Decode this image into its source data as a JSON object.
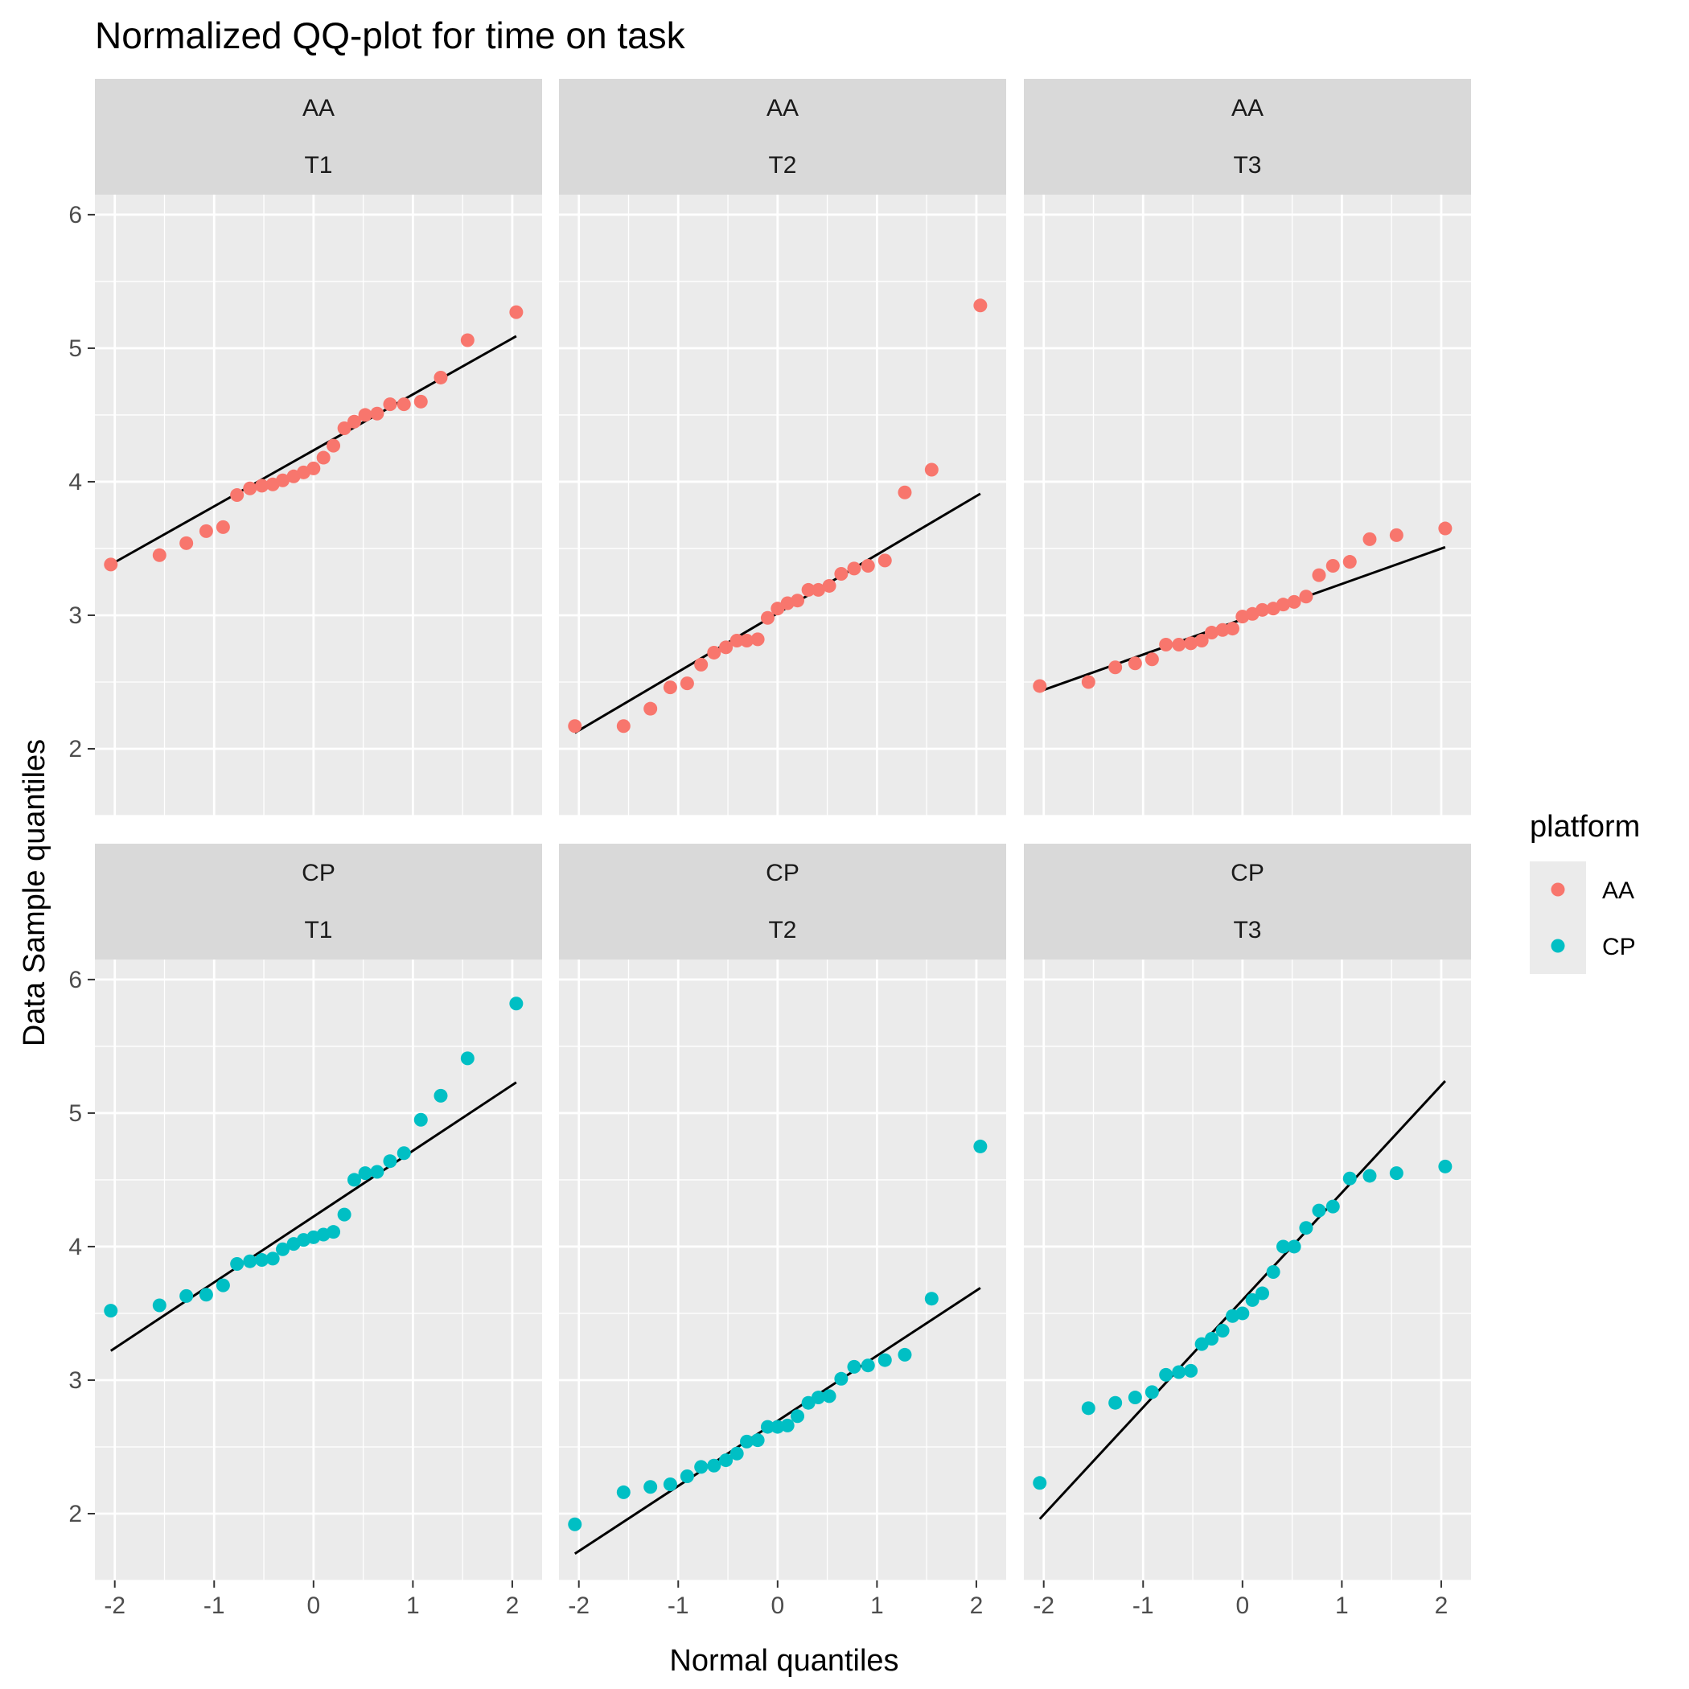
{
  "chart_data": {
    "type": "scatter",
    "title": "Normalized QQ-plot for time on task",
    "xlabel": "Normal quantiles",
    "ylabel": "Data Sample quantiles",
    "xlim": [
      -2.2,
      2.3
    ],
    "ylim": [
      1.5,
      6.15
    ],
    "x_ticks": [
      -2,
      -1,
      0,
      1,
      2
    ],
    "x_tick_labels": [
      "-2",
      "-1",
      "0",
      "1",
      "2"
    ],
    "y_ticks": [
      2,
      3,
      4,
      5,
      6
    ],
    "y_tick_labels": [
      "2",
      "3",
      "4",
      "5",
      "6"
    ],
    "grid": true,
    "legend": {
      "title": "platform",
      "position": "right",
      "entries": [
        {
          "label": "AA",
          "color": "#F8766D"
        },
        {
          "label": "CP",
          "color": "#00BFC4"
        }
      ]
    },
    "line_color": "#000000",
    "panel_background": "#EBEBEB",
    "strip_background": "#D9D9D9",
    "panels": [
      {
        "row": 0,
        "col": 0,
        "platform": "AA",
        "task": "T1",
        "color": "#F8766D",
        "x": [
          -2.04,
          -1.55,
          -1.28,
          -1.08,
          -0.91,
          -0.77,
          -0.64,
          -0.52,
          -0.41,
          -0.31,
          -0.2,
          -0.1,
          0.0,
          0.1,
          0.2,
          0.31,
          0.41,
          0.52,
          0.64,
          0.77,
          0.91,
          1.08,
          1.28,
          1.55,
          2.04
        ],
        "y": [
          3.38,
          3.45,
          3.54,
          3.63,
          3.66,
          3.9,
          3.95,
          3.97,
          3.98,
          4.01,
          4.04,
          4.07,
          4.1,
          4.18,
          4.27,
          4.4,
          4.45,
          4.5,
          4.51,
          4.58,
          4.58,
          4.6,
          4.78,
          5.06,
          5.27
        ],
        "line": [
          [
            -2.04,
            3.38
          ],
          [
            2.04,
            5.09
          ]
        ]
      },
      {
        "row": 0,
        "col": 1,
        "platform": "AA",
        "task": "T2",
        "color": "#F8766D",
        "x": [
          -2.04,
          -1.55,
          -1.28,
          -1.08,
          -0.91,
          -0.77,
          -0.64,
          -0.52,
          -0.41,
          -0.31,
          -0.2,
          -0.1,
          0.0,
          0.1,
          0.2,
          0.31,
          0.41,
          0.52,
          0.64,
          0.77,
          0.91,
          1.08,
          1.28,
          1.55,
          2.04
        ],
        "y": [
          2.17,
          2.17,
          2.3,
          2.46,
          2.49,
          2.63,
          2.72,
          2.76,
          2.81,
          2.81,
          2.82,
          2.98,
          3.05,
          3.09,
          3.11,
          3.19,
          3.19,
          3.22,
          3.31,
          3.35,
          3.37,
          3.41,
          3.92,
          4.09,
          5.32
        ],
        "line": [
          [
            -2.04,
            2.12
          ],
          [
            2.04,
            3.91
          ]
        ]
      },
      {
        "row": 0,
        "col": 2,
        "platform": "AA",
        "task": "T3",
        "color": "#F8766D",
        "x": [
          -2.04,
          -1.55,
          -1.28,
          -1.08,
          -0.91,
          -0.77,
          -0.64,
          -0.52,
          -0.41,
          -0.31,
          -0.2,
          -0.1,
          0.0,
          0.1,
          0.2,
          0.31,
          0.41,
          0.52,
          0.64,
          0.77,
          0.91,
          1.08,
          1.28,
          1.55,
          2.04
        ],
        "y": [
          2.47,
          2.5,
          2.61,
          2.64,
          2.67,
          2.78,
          2.78,
          2.79,
          2.81,
          2.87,
          2.89,
          2.9,
          2.99,
          3.01,
          3.04,
          3.05,
          3.08,
          3.1,
          3.14,
          3.3,
          3.37,
          3.4,
          3.57,
          3.6,
          3.65
        ],
        "line": [
          [
            -2.04,
            2.43
          ],
          [
            2.04,
            3.51
          ]
        ]
      },
      {
        "row": 1,
        "col": 0,
        "platform": "CP",
        "task": "T1",
        "color": "#00BFC4",
        "x": [
          -2.04,
          -1.55,
          -1.28,
          -1.08,
          -0.91,
          -0.77,
          -0.64,
          -0.52,
          -0.41,
          -0.31,
          -0.2,
          -0.1,
          0.0,
          0.1,
          0.2,
          0.31,
          0.41,
          0.52,
          0.64,
          0.77,
          0.91,
          1.08,
          1.28,
          1.55,
          2.04
        ],
        "y": [
          3.52,
          3.56,
          3.63,
          3.64,
          3.71,
          3.87,
          3.89,
          3.9,
          3.91,
          3.98,
          4.02,
          4.05,
          4.07,
          4.09,
          4.11,
          4.24,
          4.5,
          4.55,
          4.56,
          4.64,
          4.7,
          4.95,
          5.13,
          5.41,
          5.82
        ],
        "line": [
          [
            -2.04,
            3.22
          ],
          [
            2.04,
            5.23
          ]
        ]
      },
      {
        "row": 1,
        "col": 1,
        "platform": "CP",
        "task": "T2",
        "color": "#00BFC4",
        "x": [
          -2.04,
          -1.55,
          -1.28,
          -1.08,
          -0.91,
          -0.77,
          -0.64,
          -0.52,
          -0.41,
          -0.31,
          -0.2,
          -0.1,
          0.0,
          0.1,
          0.2,
          0.31,
          0.41,
          0.52,
          0.64,
          0.77,
          0.91,
          1.08,
          1.28,
          1.55,
          2.04
        ],
        "y": [
          1.92,
          2.16,
          2.2,
          2.22,
          2.28,
          2.35,
          2.36,
          2.4,
          2.45,
          2.54,
          2.55,
          2.65,
          2.65,
          2.66,
          2.73,
          2.83,
          2.87,
          2.88,
          3.01,
          3.1,
          3.11,
          3.15,
          3.19,
          3.61,
          4.75
        ],
        "line": [
          [
            -2.04,
            1.7
          ],
          [
            2.04,
            3.69
          ]
        ]
      },
      {
        "row": 1,
        "col": 2,
        "platform": "CP",
        "task": "T3",
        "color": "#00BFC4",
        "x": [
          -2.04,
          -1.55,
          -1.28,
          -1.08,
          -0.91,
          -0.77,
          -0.64,
          -0.52,
          -0.41,
          -0.31,
          -0.2,
          -0.1,
          0.0,
          0.1,
          0.2,
          0.31,
          0.41,
          0.52,
          0.64,
          0.77,
          0.91,
          1.08,
          1.28,
          1.55,
          2.04
        ],
        "y": [
          2.23,
          2.79,
          2.83,
          2.87,
          2.91,
          3.04,
          3.06,
          3.07,
          3.27,
          3.31,
          3.37,
          3.48,
          3.5,
          3.6,
          3.65,
          3.81,
          4.0,
          4.0,
          4.14,
          4.27,
          4.3,
          4.51,
          4.53,
          4.55,
          4.6
        ],
        "line": [
          [
            -2.04,
            1.96
          ],
          [
            2.04,
            5.24
          ]
        ]
      }
    ]
  }
}
